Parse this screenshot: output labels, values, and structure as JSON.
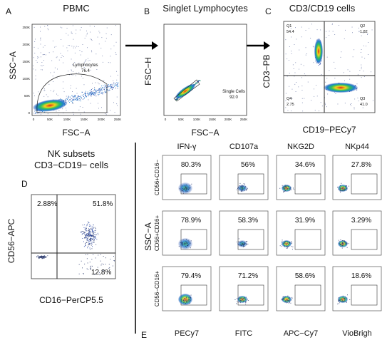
{
  "panels": {
    "A": {
      "letter": "A",
      "title": "PBMC",
      "xlabel": "FSC−A",
      "ylabel": "SSC−A",
      "gate_label": "Lymphocytes",
      "gate_value": "76.4",
      "yticks": [
        "250K",
        "200K",
        "150K",
        "100K",
        "50K",
        "0"
      ],
      "xticks": [
        "0",
        "50K",
        "100K",
        "150K",
        "200K",
        "250K"
      ]
    },
    "B": {
      "letter": "B",
      "title": "Singlet Lymphocytes",
      "xlabel": "FSC−A",
      "ylabel": "FSC−H",
      "gate_label": "Single Cells",
      "gate_value": "92.0",
      "xticks": [
        "0",
        "50K",
        "100K",
        "150K",
        "200K",
        "250K"
      ]
    },
    "C": {
      "letter": "C",
      "title": "CD3/CD19 cells",
      "xlabel": "CD19−PECy7",
      "ylabel": "CD3−PB",
      "quadrants": [
        {
          "name": "Q1",
          "value": "54.4"
        },
        {
          "name": "Q2",
          "value": "1.82"
        },
        {
          "name": "Q3",
          "value": "41.0"
        },
        {
          "name": "Q4",
          "value": "2.75"
        }
      ]
    },
    "D": {
      "letter": "D",
      "title_line1": "NK subsets",
      "title_line2": "CD3−CD19− cells",
      "xlabel": "CD16−PerCP5.5",
      "ylabel": "CD56−APC",
      "quadrants": {
        "ul": "2.88%",
        "ur": "51.8%",
        "lr": "12.8%"
      }
    },
    "E": {
      "letter": "E",
      "y_axis": "SSC−A",
      "col_headers": [
        "IFN-γ",
        "CD107a",
        "NKG2D",
        "NKp44"
      ],
      "row_labels": [
        "CD56+CD16−",
        "CD56+CD16+",
        "CD56−CD16+"
      ],
      "values": [
        [
          "80.3%",
          "56%",
          "34.6%",
          "27.8%"
        ],
        [
          "78.9%",
          "58.3%",
          "31.9%",
          "3.29%"
        ],
        [
          "79.4%",
          "71.2%",
          "58.6%",
          "18.6%"
        ]
      ],
      "col_footers": [
        "PECy7",
        "FITC",
        "APC−Cy7",
        "VioBrigh"
      ]
    }
  }
}
